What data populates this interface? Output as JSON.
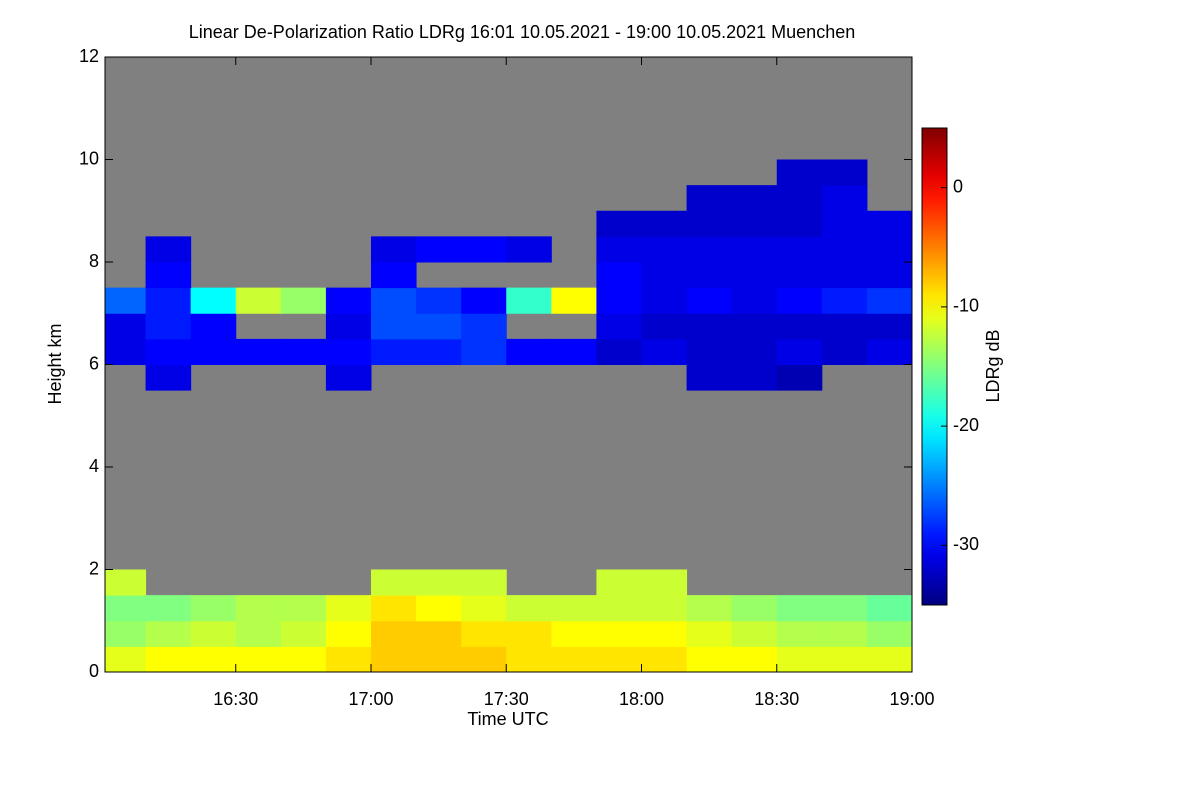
{
  "chart_data": {
    "type": "heatmap",
    "title": "Linear De-Polarization Ratio LDRg   16:01 10.05.2021 - 19:00 10.05.2021 Muenchen",
    "xlabel": "Time UTC",
    "ylabel": "Height km",
    "colorbar_label": "LDRg dB",
    "xlim": [
      961,
      1140
    ],
    "xticks": [
      {
        "value": 990,
        "label": "16:30"
      },
      {
        "value": 1020,
        "label": "17:00"
      },
      {
        "value": 1050,
        "label": "17:30"
      },
      {
        "value": 1080,
        "label": "18:00"
      },
      {
        "value": 1110,
        "label": "18:30"
      },
      {
        "value": 1140,
        "label": "19:00"
      }
    ],
    "ylim": [
      0,
      12
    ],
    "yticks": [
      0,
      2,
      4,
      6,
      8,
      10,
      12
    ],
    "clim": [
      -35,
      5
    ],
    "cticks": [
      0,
      -10,
      -20,
      -30
    ],
    "colormap": "jet",
    "missing_color": "#808080",
    "x": [
      960,
      970,
      980,
      990,
      1000,
      1010,
      1020,
      1030,
      1040,
      1050,
      1060,
      1070,
      1080,
      1090,
      1100,
      1110,
      1120,
      1130,
      1140
    ],
    "y": [
      0,
      0.5,
      1,
      1.5,
      2,
      2.5,
      3,
      3.5,
      4,
      4.5,
      5,
      5.5,
      6,
      6.5,
      7,
      7.5,
      8,
      8.5,
      9,
      9.5,
      10,
      10.5,
      11,
      11.5,
      12
    ],
    "z": [
      [
        -11,
        -10,
        -10,
        -10,
        -10,
        -9,
        -8,
        -8,
        -8,
        -9,
        -9,
        -9,
        -9,
        -10,
        -10,
        -11,
        -11,
        -11
      ],
      [
        -14,
        -13,
        -12,
        -13,
        -12,
        -10,
        -8,
        -8,
        -9,
        -9,
        -10,
        -10,
        -10,
        -11,
        -12,
        -13,
        -13,
        -14
      ],
      [
        -15,
        -15,
        -14,
        -13,
        -13,
        -11,
        -9,
        -10,
        -11,
        -12,
        -12,
        -12,
        -12,
        -13,
        -14,
        -15,
        -15,
        -16
      ],
      [
        -12,
        null,
        null,
        null,
        null,
        null,
        -12,
        -12,
        -12,
        null,
        null,
        -12,
        -12,
        null,
        null,
        null,
        null,
        null
      ],
      [
        null,
        null,
        null,
        null,
        null,
        null,
        null,
        null,
        null,
        null,
        null,
        null,
        null,
        null,
        null,
        null,
        null,
        null
      ],
      [
        null,
        null,
        null,
        null,
        null,
        null,
        null,
        null,
        null,
        null,
        null,
        null,
        null,
        null,
        null,
        null,
        null,
        null
      ],
      [
        null,
        null,
        null,
        null,
        null,
        null,
        null,
        null,
        null,
        null,
        null,
        null,
        null,
        null,
        null,
        null,
        null,
        null
      ],
      [
        null,
        null,
        null,
        null,
        null,
        null,
        null,
        null,
        null,
        null,
        null,
        null,
        null,
        null,
        null,
        null,
        null,
        null
      ],
      [
        null,
        null,
        null,
        null,
        null,
        null,
        null,
        null,
        null,
        null,
        null,
        null,
        null,
        null,
        null,
        null,
        null,
        null
      ],
      [
        null,
        null,
        null,
        null,
        null,
        null,
        null,
        null,
        null,
        null,
        null,
        null,
        null,
        null,
        null,
        null,
        null,
        null
      ],
      [
        null,
        null,
        null,
        null,
        null,
        null,
        null,
        null,
        null,
        null,
        null,
        null,
        null,
        null,
        null,
        null,
        null,
        null
      ],
      [
        null,
        -31,
        null,
        null,
        null,
        -31,
        null,
        null,
        null,
        null,
        null,
        null,
        null,
        -32,
        -32,
        -33,
        null,
        null
      ],
      [
        -31,
        -30,
        -30,
        -30,
        -30,
        -30,
        -29,
        -29,
        -28,
        -30,
        -30,
        -32,
        -31,
        -32,
        -32,
        -31,
        -32,
        -31
      ],
      [
        -31,
        -29,
        -30,
        null,
        null,
        -31,
        -27,
        -27,
        -28,
        null,
        null,
        -31,
        -32,
        -32,
        -32,
        -32,
        -32,
        -32
      ],
      [
        -26,
        -29,
        -20,
        -12,
        -14,
        -30,
        -27,
        -28,
        -30,
        -18,
        -10,
        -30,
        -31,
        -30,
        -31,
        -30,
        -29,
        -28
      ],
      [
        null,
        -30,
        null,
        null,
        null,
        null,
        -30,
        null,
        null,
        null,
        null,
        -30,
        -31,
        -31,
        -31,
        -31,
        -31,
        -31
      ],
      [
        null,
        -31,
        null,
        null,
        null,
        null,
        -31,
        -30,
        -30,
        -31,
        null,
        -31,
        -31,
        -31,
        -31,
        -31,
        -31,
        -31
      ],
      [
        null,
        null,
        null,
        null,
        null,
        null,
        null,
        null,
        null,
        null,
        null,
        -32,
        -32,
        -32,
        -32,
        -32,
        -31,
        -31
      ],
      [
        null,
        null,
        null,
        null,
        null,
        null,
        null,
        null,
        null,
        null,
        null,
        null,
        null,
        -32,
        -32,
        -32,
        -31,
        null
      ],
      [
        null,
        null,
        null,
        null,
        null,
        null,
        null,
        null,
        null,
        null,
        null,
        null,
        null,
        null,
        null,
        -32,
        -32,
        null
      ],
      [
        null,
        null,
        null,
        null,
        null,
        null,
        null,
        null,
        null,
        null,
        null,
        null,
        null,
        null,
        null,
        null,
        null,
        null
      ],
      [
        null,
        null,
        null,
        null,
        null,
        null,
        null,
        null,
        null,
        null,
        null,
        null,
        null,
        null,
        null,
        null,
        null,
        null
      ],
      [
        null,
        null,
        null,
        null,
        null,
        null,
        null,
        null,
        null,
        null,
        null,
        null,
        null,
        null,
        null,
        null,
        null,
        null
      ],
      [
        null,
        null,
        null,
        null,
        null,
        null,
        null,
        null,
        null,
        null,
        null,
        null,
        null,
        null,
        null,
        null,
        null,
        null
      ]
    ]
  }
}
